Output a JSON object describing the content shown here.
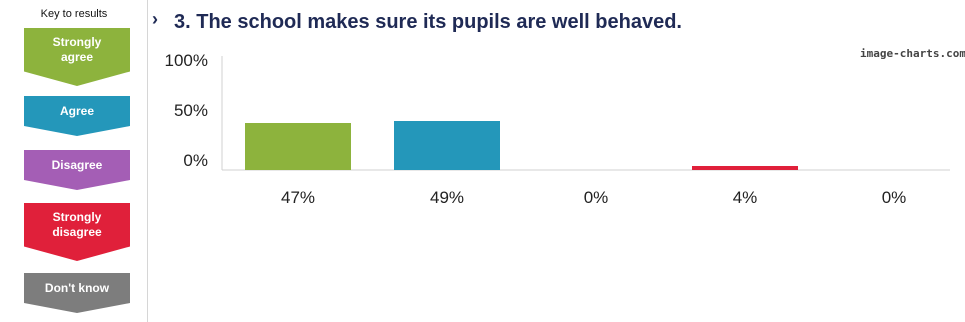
{
  "key": {
    "title": "Key to results",
    "items": [
      {
        "label": "Strongly agree",
        "color": "#8db33d"
      },
      {
        "label": "Agree",
        "color": "#2497ba"
      },
      {
        "label": "Disagree",
        "color": "#a45eb5"
      },
      {
        "label": "Strongly disagree",
        "color": "#e0203a"
      },
      {
        "label": "Don't know",
        "color": "#7d7d7d"
      }
    ]
  },
  "watermark": "image-charts.com",
  "chart_data": {
    "type": "bar",
    "title": "3. The school makes sure its pupils are well behaved.",
    "categories": [
      "Strongly agree",
      "Agree",
      "Disagree",
      "Strongly disagree",
      "Don't know"
    ],
    "values": [
      47,
      49,
      0,
      4,
      0
    ],
    "value_labels": [
      "47%",
      "49%",
      "0%",
      "4%",
      "0%"
    ],
    "colors": [
      "#8db33d",
      "#2497ba",
      "#a45eb5",
      "#e0203a",
      "#7d7d7d"
    ],
    "y_ticks": [
      "100%",
      "50%",
      "0%"
    ],
    "ylim": [
      0,
      100
    ],
    "xlabel": "",
    "ylabel": "",
    "grid": false,
    "legend": "left"
  }
}
